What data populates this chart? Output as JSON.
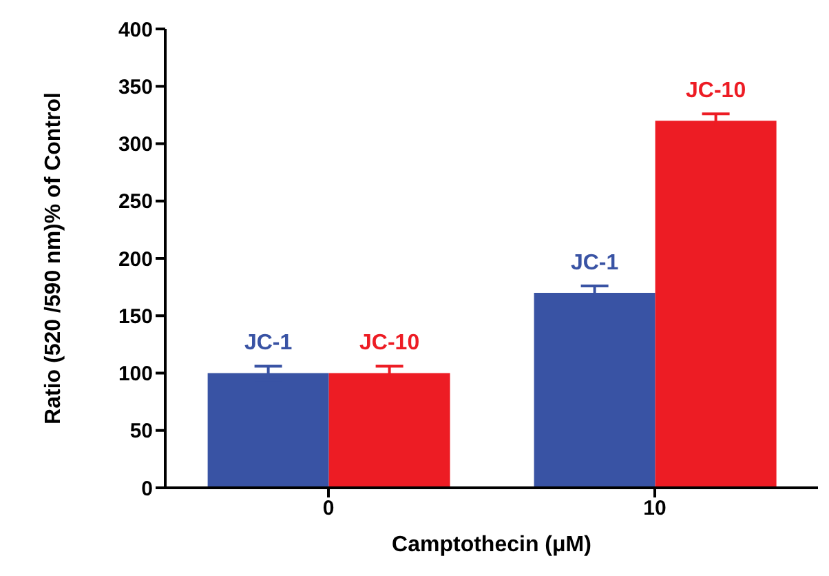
{
  "chart_data": {
    "type": "bar",
    "categories": [
      "0",
      "10"
    ],
    "series": [
      {
        "name": "JC-1",
        "color": "#3953a4",
        "values": [
          100,
          170
        ],
        "errors": [
          6,
          6
        ]
      },
      {
        "name": "JC-10",
        "color": "#ed1c24",
        "values": [
          100,
          320
        ],
        "errors": [
          6,
          6
        ]
      }
    ],
    "xlabel": "Camptothecin (μM)",
    "ylabel": "Ratio (520 /590 nm)% of Control",
    "ylim": [
      0,
      400
    ],
    "yticks": [
      0,
      50,
      100,
      150,
      200,
      250,
      300,
      350,
      400
    ],
    "grid": false,
    "legend": false
  }
}
